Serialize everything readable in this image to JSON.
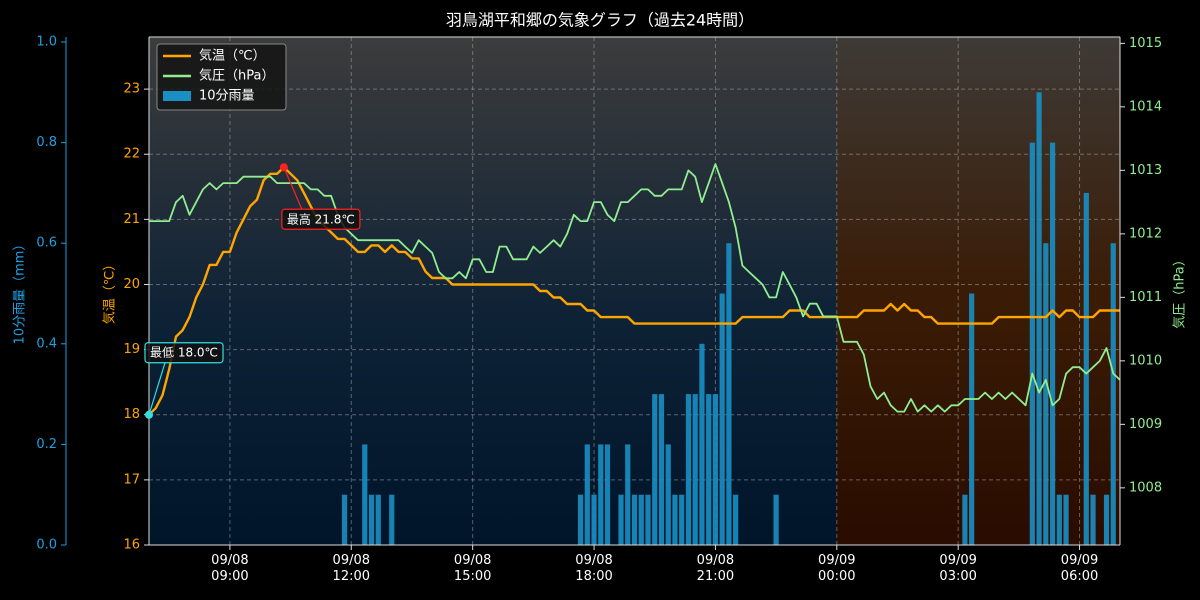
{
  "chart_data": {
    "type": "line",
    "title": "羽鳥湖平和郷の気象グラフ（過去24時間）",
    "ylabel": "気温（℃）",
    "y2label": "気圧（hPa）",
    "y3label": "10分雨量（mm）",
    "ylim": [
      16,
      23.8
    ],
    "yticks": [
      16,
      17,
      18,
      19,
      20,
      21,
      22,
      23
    ],
    "y2lim": [
      1007.1,
      1015.1
    ],
    "y2ticks": [
      1008,
      1009,
      1010,
      1011,
      1012,
      1013,
      1014,
      1015
    ],
    "y3lim": [
      0,
      1.01
    ],
    "y3ticks": [
      {
        "value": 0,
        "label": "0.0"
      },
      0.2,
      0.4,
      0.6,
      0.8,
      {
        "value": 1,
        "label": "1.0"
      }
    ],
    "xlim": [
      "09/08 07:00",
      "09/09 07:00"
    ],
    "xticks": [
      {
        "value": "09/08 09:00",
        "label": "09/08\n09:00"
      },
      {
        "value": "09/08 12:00",
        "label": "09/08\n12:00"
      },
      {
        "value": "09/08 15:00",
        "label": "09/08\n15:00"
      },
      {
        "value": "09/08 18:00",
        "label": "09/08\n18:00"
      },
      {
        "value": "09/08 21:00",
        "label": "09/08\n21:00"
      },
      {
        "value": "09/09 00:00",
        "label": "09/09\n00:00"
      },
      {
        "value": "09/09 03:00",
        "label": "09/09\n03:00"
      },
      {
        "value": "09/09 06:00",
        "label": "09/09\n06:00"
      }
    ],
    "grid": true,
    "legend": "upper left",
    "shaded_region": [
      "09/09 00:00",
      "09/09 07:00"
    ],
    "x": [
      "09/08 07:00",
      "09/08 07:10",
      "09/08 07:20",
      "09/08 07:30",
      "09/08 07:40",
      "09/08 07:50",
      "09/08 08:00",
      "09/08 08:10",
      "09/08 08:20",
      "09/08 08:30",
      "09/08 08:40",
      "09/08 08:50",
      "09/08 09:00",
      "09/08 09:10",
      "09/08 09:20",
      "09/08 09:30",
      "09/08 09:40",
      "09/08 09:50",
      "09/08 10:00",
      "09/08 10:10",
      "09/08 10:20",
      "09/08 10:30",
      "09/08 10:40",
      "09/08 10:50",
      "09/08 11:00",
      "09/08 11:10",
      "09/08 11:20",
      "09/08 11:30",
      "09/08 11:40",
      "09/08 11:50",
      "09/08 12:00",
      "09/08 12:10",
      "09/08 12:20",
      "09/08 12:30",
      "09/08 12:40",
      "09/08 12:50",
      "09/08 13:00",
      "09/08 13:10",
      "09/08 13:20",
      "09/08 13:30",
      "09/08 13:40",
      "09/08 13:50",
      "09/08 14:00",
      "09/08 14:10",
      "09/08 14:20",
      "09/08 14:30",
      "09/08 14:40",
      "09/08 14:50",
      "09/08 15:00",
      "09/08 15:10",
      "09/08 15:20",
      "09/08 15:30",
      "09/08 15:40",
      "09/08 15:50",
      "09/08 16:00",
      "09/08 16:10",
      "09/08 16:20",
      "09/08 16:30",
      "09/08 16:40",
      "09/08 16:50",
      "09/08 17:00",
      "09/08 17:10",
      "09/08 17:20",
      "09/08 17:30",
      "09/08 17:40",
      "09/08 17:50",
      "09/08 18:00",
      "09/08 18:10",
      "09/08 18:20",
      "09/08 18:30",
      "09/08 18:40",
      "09/08 18:50",
      "09/08 19:00",
      "09/08 19:10",
      "09/08 19:20",
      "09/08 19:30",
      "09/08 19:40",
      "09/08 19:50",
      "09/08 20:00",
      "09/08 20:10",
      "09/08 20:20",
      "09/08 20:30",
      "09/08 20:40",
      "09/08 20:50",
      "09/08 21:00",
      "09/08 21:10",
      "09/08 21:20",
      "09/08 21:30",
      "09/08 21:40",
      "09/08 21:50",
      "09/08 22:00",
      "09/08 22:10",
      "09/08 22:20",
      "09/08 22:30",
      "09/08 22:40",
      "09/08 22:50",
      "09/08 23:00",
      "09/08 23:10",
      "09/08 23:20",
      "09/08 23:30",
      "09/08 23:40",
      "09/08 23:50",
      "09/09 00:00",
      "09/09 00:10",
      "09/09 00:20",
      "09/09 00:30",
      "09/09 00:40",
      "09/09 00:50",
      "09/09 01:00",
      "09/09 01:10",
      "09/09 01:20",
      "09/09 01:30",
      "09/09 01:40",
      "09/09 01:50",
      "09/09 02:00",
      "09/09 02:10",
      "09/09 02:20",
      "09/09 02:30",
      "09/09 02:40",
      "09/09 02:50",
      "09/09 03:00",
      "09/09 03:10",
      "09/09 03:20",
      "09/09 03:30",
      "09/09 03:40",
      "09/09 03:50",
      "09/09 04:00",
      "09/09 04:10",
      "09/09 04:20",
      "09/09 04:30",
      "09/09 04:40",
      "09/09 04:50",
      "09/09 05:00",
      "09/09 05:10",
      "09/09 05:20",
      "09/09 05:30",
      "09/09 05:40",
      "09/09 05:50",
      "09/09 06:00",
      "09/09 06:10",
      "09/09 06:20",
      "09/09 06:30",
      "09/09 06:40",
      "09/09 06:50",
      "09/09 07:00"
    ],
    "series": [
      {
        "name": "気温（℃）",
        "type": "line",
        "axis": "y",
        "color": "#ffa500",
        "values": [
          18.0,
          18.1,
          18.3,
          18.7,
          19.2,
          19.3,
          19.5,
          19.8,
          20.0,
          20.3,
          20.3,
          20.5,
          20.5,
          20.8,
          21.0,
          21.2,
          21.3,
          21.6,
          21.7,
          21.7,
          21.8,
          21.7,
          21.6,
          21.4,
          21.2,
          21.0,
          20.9,
          20.8,
          20.7,
          20.7,
          20.6,
          20.5,
          20.5,
          20.6,
          20.6,
          20.5,
          20.6,
          20.5,
          20.5,
          20.4,
          20.4,
          20.2,
          20.1,
          20.1,
          20.1,
          20.0,
          20.0,
          20.0,
          20.0,
          20.0,
          20.0,
          20.0,
          20.0,
          20.0,
          20.0,
          20.0,
          20.0,
          20.0,
          19.9,
          19.9,
          19.8,
          19.8,
          19.7,
          19.7,
          19.7,
          19.6,
          19.6,
          19.5,
          19.5,
          19.5,
          19.5,
          19.5,
          19.4,
          19.4,
          19.4,
          19.4,
          19.4,
          19.4,
          19.4,
          19.4,
          19.4,
          19.4,
          19.4,
          19.4,
          19.4,
          19.4,
          19.4,
          19.4,
          19.5,
          19.5,
          19.5,
          19.5,
          19.5,
          19.5,
          19.5,
          19.6,
          19.6,
          19.6,
          19.5,
          19.5,
          19.5,
          19.5,
          19.5,
          19.5,
          19.5,
          19.5,
          19.6,
          19.6,
          19.6,
          19.6,
          19.7,
          19.6,
          19.7,
          19.6,
          19.6,
          19.5,
          19.5,
          19.4,
          19.4,
          19.4,
          19.4,
          19.4,
          19.4,
          19.4,
          19.4,
          19.4,
          19.5,
          19.5,
          19.5,
          19.5,
          19.5,
          19.5,
          19.5,
          19.5,
          19.6,
          19.5,
          19.6,
          19.6,
          19.5,
          19.5,
          19.5,
          19.6,
          19.6,
          19.6,
          19.6
        ]
      },
      {
        "name": "気圧（hPa）",
        "type": "line",
        "axis": "y2",
        "color": "#90ee90",
        "values": [
          1012.2,
          1012.2,
          1012.2,
          1012.2,
          1012.5,
          1012.6,
          1012.3,
          1012.5,
          1012.7,
          1012.8,
          1012.7,
          1012.8,
          1012.8,
          1012.8,
          1012.9,
          1012.9,
          1012.9,
          1012.9,
          1012.9,
          1012.8,
          1012.8,
          1012.8,
          1012.8,
          1012.8,
          1012.7,
          1012.7,
          1012.6,
          1012.6,
          1012.3,
          1012.1,
          1012.0,
          1011.9,
          1011.9,
          1011.9,
          1011.9,
          1011.9,
          1011.9,
          1011.9,
          1011.8,
          1011.7,
          1011.9,
          1011.8,
          1011.7,
          1011.4,
          1011.3,
          1011.3,
          1011.4,
          1011.3,
          1011.6,
          1011.6,
          1011.4,
          1011.4,
          1011.8,
          1011.8,
          1011.6,
          1011.6,
          1011.6,
          1011.8,
          1011.7,
          1011.8,
          1011.9,
          1011.8,
          1012.0,
          1012.3,
          1012.2,
          1012.2,
          1012.5,
          1012.5,
          1012.3,
          1012.2,
          1012.5,
          1012.5,
          1012.6,
          1012.7,
          1012.7,
          1012.6,
          1012.6,
          1012.7,
          1012.7,
          1012.7,
          1013.0,
          1012.9,
          1012.5,
          1012.8,
          1013.1,
          1012.8,
          1012.5,
          1012.1,
          1011.5,
          1011.4,
          1011.3,
          1011.2,
          1011.0,
          1011.0,
          1011.4,
          1011.2,
          1011.0,
          1010.7,
          1010.9,
          1010.9,
          1010.7,
          1010.7,
          1010.7,
          1010.3,
          1010.3,
          1010.3,
          1010.1,
          1009.6,
          1009.4,
          1009.5,
          1009.3,
          1009.2,
          1009.2,
          1009.4,
          1009.2,
          1009.3,
          1009.2,
          1009.3,
          1009.2,
          1009.3,
          1009.3,
          1009.4,
          1009.4,
          1009.4,
          1009.5,
          1009.4,
          1009.5,
          1009.4,
          1009.5,
          1009.4,
          1009.3,
          1009.8,
          1009.5,
          1009.7,
          1009.3,
          1009.4,
          1009.8,
          1009.9,
          1009.9,
          1009.8,
          1009.9,
          1010.0,
          1010.2,
          1009.8,
          1009.7
        ]
      },
      {
        "name": "10分雨量",
        "type": "bar",
        "axis": "y3",
        "color": "#1a8fc4",
        "values": [
          0,
          0,
          0,
          0,
          0,
          0,
          0,
          0,
          0,
          0,
          0,
          0,
          0,
          0,
          0,
          0,
          0,
          0,
          0,
          0,
          0,
          0,
          0,
          0,
          0,
          0,
          0,
          0,
          0,
          0.1,
          0,
          0,
          0.2,
          0.1,
          0.1,
          0,
          0.1,
          0,
          0,
          0,
          0,
          0,
          0,
          0,
          0,
          0,
          0,
          0,
          0,
          0,
          0,
          0,
          0,
          0,
          0,
          0,
          0,
          0,
          0,
          0,
          0,
          0,
          0,
          0,
          0.1,
          0.2,
          0.1,
          0.2,
          0.2,
          0,
          0.1,
          0.2,
          0.1,
          0.1,
          0.1,
          0.3,
          0.3,
          0.2,
          0.1,
          0.1,
          0.3,
          0.3,
          0.4,
          0.3,
          0.3,
          0.5,
          0.6,
          0.1,
          0,
          0,
          0,
          0,
          0,
          0.1,
          0,
          0,
          0,
          0,
          0,
          0,
          0,
          0,
          0,
          0,
          0,
          0,
          0,
          0,
          0,
          0,
          0,
          0,
          0,
          0,
          0,
          0,
          0,
          0,
          0,
          0,
          0,
          0.1,
          0.5,
          0,
          0,
          0,
          0,
          0,
          0,
          0,
          0,
          0.8,
          0.9,
          0.6,
          0.8,
          0.1,
          0.1,
          0,
          0,
          0.7,
          0.1,
          0,
          0.1,
          0.6,
          0
        ]
      }
    ],
    "annotations": [
      {
        "text": "最高 21.8℃",
        "target": "max",
        "color": "#ff2020"
      },
      {
        "text": "最低 18.0℃",
        "target": "min",
        "color": "#30e0e0"
      }
    ]
  }
}
